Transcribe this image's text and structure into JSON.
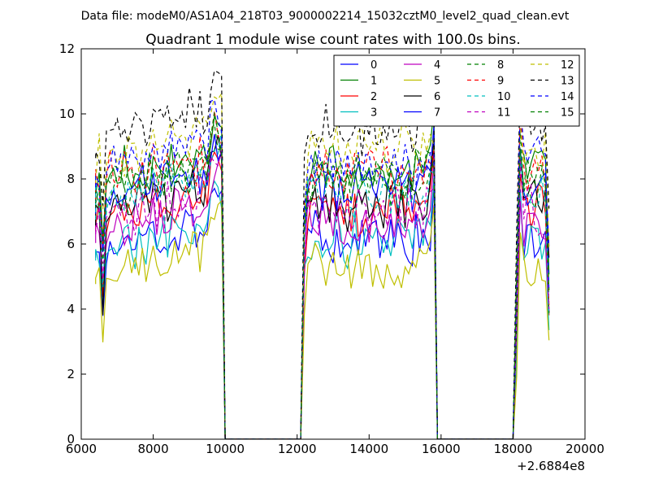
{
  "suptitle": "Data file: modeM0/AS1A04_218T03_9000002214_15032cztM0_level2_quad_clean.evt",
  "chart_data": {
    "type": "line",
    "title": "Quadrant 1 module wise count rates with 100.0s bins.",
    "xlabel": "",
    "ylabel": "",
    "x_offset_label": "+2.6884e8",
    "xlim": [
      6000,
      20000
    ],
    "ylim": [
      0,
      12
    ],
    "x_ticks": [
      6000,
      8000,
      10000,
      12000,
      14000,
      16000,
      18000,
      20000
    ],
    "y_ticks": [
      0,
      2,
      4,
      6,
      8,
      10,
      12
    ],
    "legend_position": "top-right",
    "bin_width": 100,
    "segments": [
      {
        "start": 6400,
        "end": 9900
      },
      {
        "start": 12200,
        "end": 15800
      },
      {
        "start": 18100,
        "end": 19000
      }
    ],
    "series": [
      {
        "name": "0",
        "color": "#0000ff",
        "dash": "solid",
        "level": 6.2
      },
      {
        "name": "1",
        "color": "#008000",
        "dash": "solid",
        "level": 8.3
      },
      {
        "name": "2",
        "color": "#ff0000",
        "dash": "solid",
        "level": 7.1
      },
      {
        "name": "3",
        "color": "#00bfbf",
        "dash": "solid",
        "level": 6.1
      },
      {
        "name": "4",
        "color": "#bf00bf",
        "dash": "solid",
        "level": 6.7
      },
      {
        "name": "5",
        "color": "#bfbf00",
        "dash": "solid",
        "level": 5.3
      },
      {
        "name": "6",
        "color": "#000000",
        "dash": "solid",
        "level": 7.3
      },
      {
        "name": "7",
        "color": "#0000ff",
        "dash": "solid",
        "level": 7.7
      },
      {
        "name": "8",
        "color": "#008000",
        "dash": "dashed",
        "level": 7.9
      },
      {
        "name": "9",
        "color": "#ff0000",
        "dash": "dashed",
        "level": 8.2
      },
      {
        "name": "10",
        "color": "#00bfbf",
        "dash": "dashed",
        "level": 7.5
      },
      {
        "name": "11",
        "color": "#bf00bf",
        "dash": "dashed",
        "level": 7.0
      },
      {
        "name": "12",
        "color": "#bfbf00",
        "dash": "dashed",
        "level": 8.9
      },
      {
        "name": "13",
        "color": "#000000",
        "dash": "dashed",
        "level": 9.6
      },
      {
        "name": "14",
        "color": "#0000ff",
        "dash": "dashed",
        "level": 8.6
      },
      {
        "name": "15",
        "color": "#008000",
        "dash": "dashed",
        "level": 8.1
      }
    ]
  }
}
